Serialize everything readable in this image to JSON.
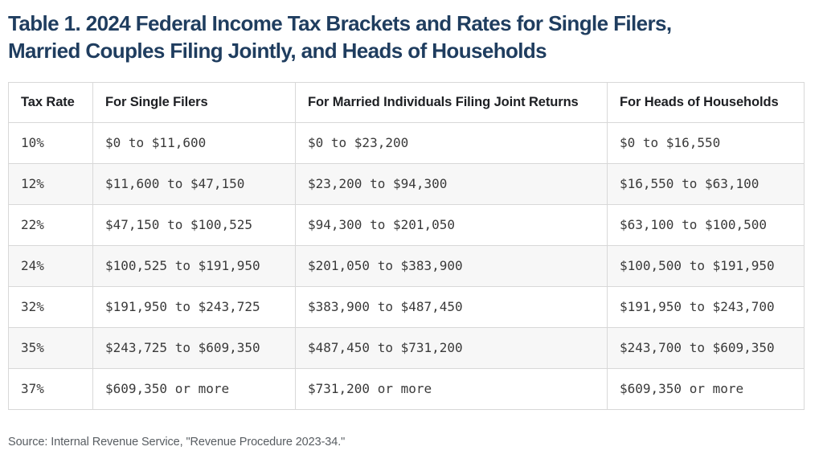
{
  "title_lines": [
    "Table 1. 2024 Federal Income Tax Brackets and Rates for Single Filers,",
    "Married Couples Filing Jointly, and Heads of Households"
  ],
  "source_note": "Source: Internal Revenue Service, \"Revenue Procedure 2023-34.\"",
  "colors": {
    "title_navy": "#1f3d5f",
    "header_text": "#1d1f23",
    "cell_text": "#3a3a3a",
    "grid_border": "#d8d8d8",
    "alt_row_bg": "#f7f7f7",
    "source_text": "#585d62",
    "background": "#ffffff"
  },
  "chart_data": {
    "type": "table",
    "title": "Table 1. 2024 Federal Income Tax Brackets and Rates for Single Filers, Married Couples Filing Jointly, and Heads of Households",
    "columns": [
      "Tax Rate",
      "For Single Filers",
      "For Married Individuals Filing Joint Returns",
      "For Heads of Households"
    ],
    "rows": [
      [
        "10%",
        "$0 to $11,600",
        "$0 to $23,200",
        "$0 to $16,550"
      ],
      [
        "12%",
        "$11,600 to $47,150",
        "$23,200 to $94,300",
        "$16,550 to $63,100"
      ],
      [
        "22%",
        "$47,150 to $100,525",
        "$94,300 to $201,050",
        "$63,100 to $100,500"
      ],
      [
        "24%",
        "$100,525 to $191,950",
        "$201,050 to $383,900",
        "$100,500 to $191,950"
      ],
      [
        "32%",
        "$191,950 to $243,725",
        "$383,900 to $487,450",
        "$191,950 to $243,700"
      ],
      [
        "35%",
        "$243,725 to $609,350",
        "$487,450 to $731,200",
        "$243,700 to $609,350"
      ],
      [
        "37%",
        "$609,350 or more",
        "$731,200 or more",
        "$609,350 or more"
      ]
    ],
    "annotations": [
      "Source: Internal Revenue Service, \"Revenue Procedure 2023-34.\""
    ]
  }
}
